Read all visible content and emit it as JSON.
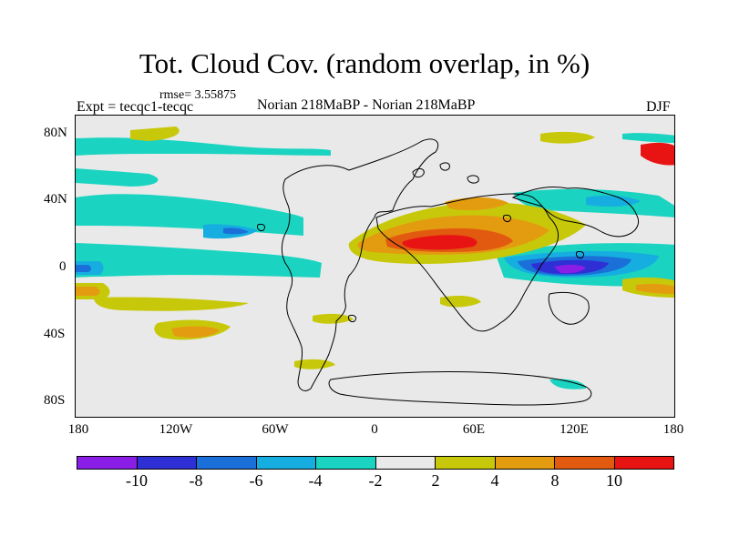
{
  "title": "Tot. Cloud Cov. (random overlap, in %)",
  "rmse": "rmse= 3.55875",
  "left_header": "Expt = tecqc1-tecqc",
  "center_header": "Norian 218MaBP - Norian 218MaBP",
  "right_header": "DJF",
  "map": {
    "lat_labels": [
      "80N",
      "40N",
      "0",
      "40S",
      "80S"
    ],
    "lon_labels": [
      "180",
      "120W",
      "60W",
      "0",
      "60E",
      "120E",
      "180"
    ]
  },
  "colorbar": {
    "colors": [
      "#8a1ee6",
      "#2f2fd6",
      "#1a6fd8",
      "#16aee0",
      "#1ad4c1",
      "#e9e9e9",
      "#c8c80a",
      "#e39b10",
      "#e25a10",
      "#e81414"
    ],
    "labels": [
      "-10",
      "-8",
      "-6",
      "-4",
      "-2",
      "2",
      "4",
      "8",
      "10"
    ]
  }
}
